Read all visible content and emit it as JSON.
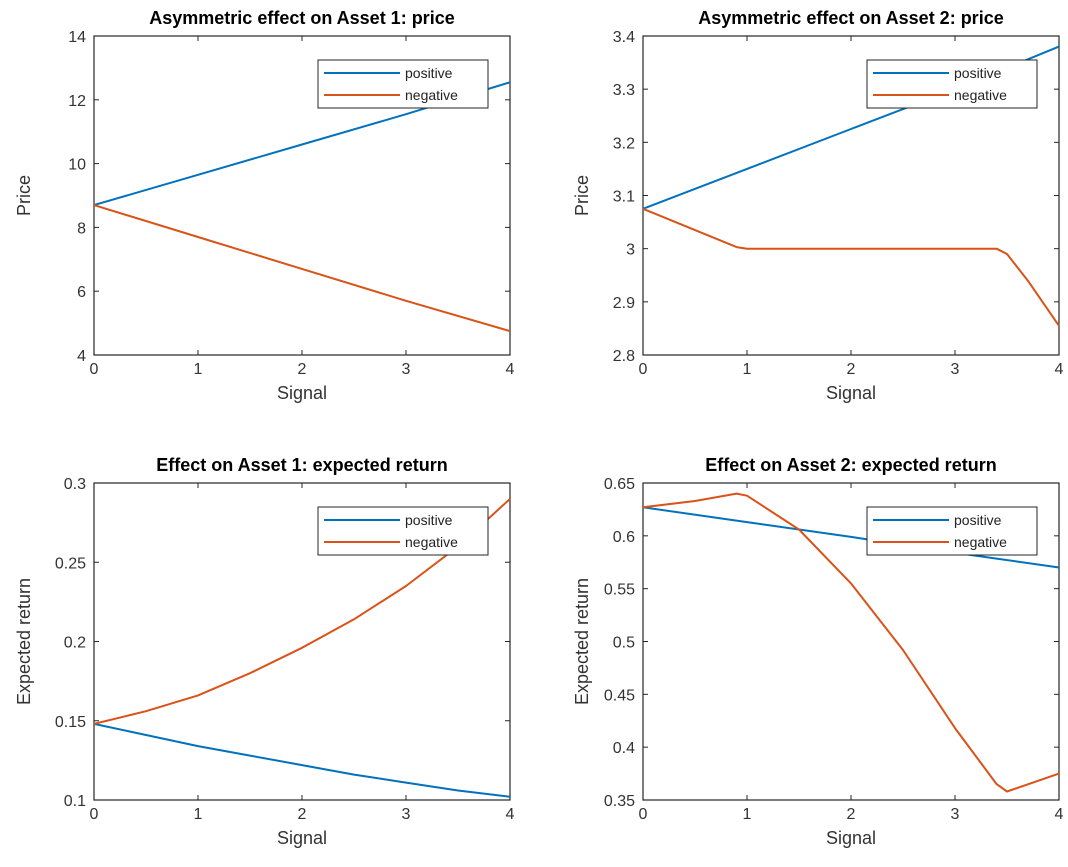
{
  "colors": {
    "positive": "#0072BD",
    "negative": "#D95319",
    "axis": "#262626",
    "background": "#ffffff"
  },
  "chart_data": [
    {
      "type": "line",
      "title": "Asymmetric effect on Asset 1: price",
      "xlabel": "Signal",
      "ylabel": "Price",
      "xlim": [
        0,
        4
      ],
      "ylim": [
        4,
        14
      ],
      "xticks": [
        0,
        1,
        2,
        3,
        4
      ],
      "yticks": [
        4,
        6,
        8,
        10,
        12,
        14
      ],
      "grid": false,
      "legend": "top-right",
      "series": [
        {
          "name": "positive",
          "x": [
            0,
            1,
            2,
            3,
            4
          ],
          "y": [
            8.7,
            9.65,
            10.6,
            11.55,
            12.55
          ]
        },
        {
          "name": "negative",
          "x": [
            0,
            1,
            2,
            3,
            4
          ],
          "y": [
            8.7,
            7.7,
            6.7,
            5.7,
            4.75
          ]
        }
      ]
    },
    {
      "type": "line",
      "title": "Asymmetric effect on Asset 2: price",
      "xlabel": "Signal",
      "ylabel": "Price",
      "xlim": [
        0,
        4
      ],
      "ylim": [
        2.8,
        3.4
      ],
      "xticks": [
        0,
        1,
        2,
        3,
        4
      ],
      "yticks": [
        2.8,
        2.9,
        3,
        3.1,
        3.2,
        3.3,
        3.4
      ],
      "ytick_labels": [
        "2.8",
        "2.9",
        "3",
        "3.1",
        "3.2",
        "3.3",
        "3.4"
      ],
      "grid": false,
      "legend": "top-right",
      "series": [
        {
          "name": "positive",
          "x": [
            0,
            1,
            2,
            3,
            4
          ],
          "y": [
            3.075,
            3.15,
            3.225,
            3.3,
            3.38
          ]
        },
        {
          "name": "negative",
          "x": [
            0,
            0.5,
            0.9,
            1,
            2,
            3,
            3.4,
            3.5,
            3.7,
            4
          ],
          "y": [
            3.075,
            3.035,
            3.003,
            3.0,
            3.0,
            3.0,
            3.0,
            2.99,
            2.94,
            2.855
          ]
        }
      ]
    },
    {
      "type": "line",
      "title": "Effect on Asset 1: expected return",
      "xlabel": "Signal",
      "ylabel": "Expected return",
      "xlim": [
        0,
        4
      ],
      "ylim": [
        0.1,
        0.3
      ],
      "xticks": [
        0,
        1,
        2,
        3,
        4
      ],
      "yticks": [
        0.1,
        0.15,
        0.2,
        0.25,
        0.3
      ],
      "grid": false,
      "legend": "top-right",
      "series": [
        {
          "name": "positive",
          "x": [
            0,
            0.5,
            1,
            1.5,
            2,
            2.5,
            3,
            3.5,
            4
          ],
          "y": [
            0.148,
            0.141,
            0.134,
            0.128,
            0.122,
            0.116,
            0.111,
            0.106,
            0.102
          ]
        },
        {
          "name": "negative",
          "x": [
            0,
            0.5,
            1,
            1.5,
            2,
            2.5,
            3,
            3.5,
            4
          ],
          "y": [
            0.148,
            0.156,
            0.166,
            0.18,
            0.196,
            0.214,
            0.235,
            0.26,
            0.29
          ]
        }
      ]
    },
    {
      "type": "line",
      "title": "Effect on Asset 2: expected return",
      "xlabel": "Signal",
      "ylabel": "Expected return",
      "xlim": [
        0,
        4
      ],
      "ylim": [
        0.35,
        0.65
      ],
      "xticks": [
        0,
        1,
        2,
        3,
        4
      ],
      "yticks": [
        0.35,
        0.4,
        0.45,
        0.5,
        0.55,
        0.6,
        0.65
      ],
      "grid": false,
      "legend": "top-right",
      "series": [
        {
          "name": "positive",
          "x": [
            0,
            1,
            2,
            3,
            4
          ],
          "y": [
            0.627,
            0.613,
            0.599,
            0.584,
            0.57
          ]
        },
        {
          "name": "negative",
          "x": [
            0,
            0.5,
            0.9,
            1,
            1.5,
            2,
            2.5,
            3,
            3.4,
            3.5,
            4
          ],
          "y": [
            0.627,
            0.633,
            0.64,
            0.638,
            0.606,
            0.555,
            0.492,
            0.418,
            0.365,
            0.358,
            0.375
          ]
        }
      ]
    }
  ]
}
